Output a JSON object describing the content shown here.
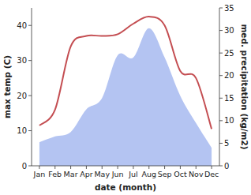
{
  "chart_data": {
    "type": "line",
    "categories": [
      "Jan",
      "Feb",
      "Mar",
      "Apr",
      "May",
      "Jun",
      "Jul",
      "Aug",
      "Sep",
      "Oct",
      "Nov",
      "Dec"
    ],
    "x_label": "date (month)",
    "y_label": "max temp (C)",
    "y2_label": "med. precipitation (kg/m2)",
    "ylim": [
      0,
      45
    ],
    "yticks": [
      0,
      10,
      20,
      30,
      40
    ],
    "y2lim": [
      0,
      35
    ],
    "y2ticks": [
      0,
      5,
      10,
      15,
      20,
      25,
      30,
      35
    ],
    "grid": false,
    "series": [
      {
        "name": "max temp",
        "type": "line",
        "color": "#c44e52",
        "values": [
          11.5,
          16,
          34,
          37,
          37,
          37.5,
          40.5,
          42.5,
          40,
          27,
          25,
          10.5
        ]
      },
      {
        "name": "med. precipitation",
        "type": "area",
        "axis": "y2",
        "color": "#b4c4f2",
        "values": [
          5.2,
          6.5,
          7.5,
          12.5,
          15,
          24.5,
          24,
          30.5,
          24,
          15.5,
          9.5,
          4
        ]
      }
    ]
  }
}
